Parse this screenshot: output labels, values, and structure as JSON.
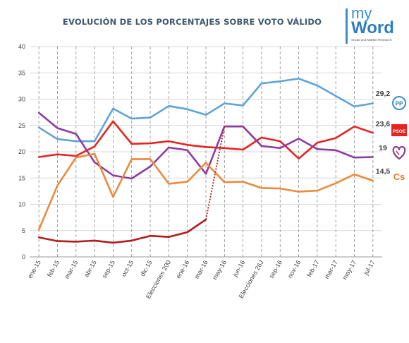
{
  "title": "EVOLUCIÓN DE LOS PORCENTAJES SOBRE VOTO VÁLIDO",
  "logo": {
    "line1": "my",
    "line2": "Word",
    "tagline": "Social and Market Research"
  },
  "party_logos": {
    "pp": "PP",
    "psoe": "PSOE",
    "cs": "Cs",
    "podemos": "heart-icon"
  },
  "chart_data": {
    "type": "line",
    "ylim": [
      0,
      40
    ],
    "yticks": [
      0,
      5,
      10,
      15,
      20,
      25,
      30,
      35,
      40
    ],
    "grid": true,
    "categories": [
      "ene-15",
      "feb-15",
      "mar-15",
      "abr-15",
      "sep-15",
      "oct-15",
      "dic-15",
      "Elecciones 200",
      "ene-16",
      "mar-16",
      "may-16",
      "jun-16",
      "Elecciones 26J",
      "sep-16",
      "nov-16",
      "feb-17",
      "mar-17",
      "may-17",
      "jul-17"
    ],
    "series": [
      {
        "key": "pp",
        "color": "#5fa3d9",
        "end_label": "29,2",
        "values": [
          24.6,
          22.4,
          22.0,
          22.0,
          28.2,
          26.3,
          26.5,
          28.7,
          28.1,
          27.0,
          29.2,
          28.8,
          33.0,
          33.4,
          33.9,
          32.6,
          30.6,
          28.6,
          29.2
        ]
      },
      {
        "key": "psoe",
        "color": "#e52421",
        "end_label": "23,6",
        "values": [
          19.0,
          19.5,
          19.2,
          21.0,
          25.8,
          21.5,
          21.6,
          22.0,
          21.3,
          20.9,
          20.7,
          20.4,
          22.7,
          22.0,
          18.7,
          21.7,
          22.6,
          24.8,
          23.6
        ]
      },
      {
        "key": "podemos",
        "color": "#8d3ba0",
        "end_label": "19",
        "values": [
          27.4,
          24.5,
          23.4,
          18.0,
          15.5,
          14.9,
          17.2,
          20.8,
          20.3,
          15.8,
          24.8,
          24.8,
          21.1,
          20.7,
          22.5,
          20.5,
          20.3,
          18.9,
          19.0
        ]
      },
      {
        "key": "cs",
        "color": "#ea8a3c",
        "end_label": "14,5",
        "values": [
          5.2,
          13.6,
          18.9,
          19.6,
          11.4,
          18.6,
          18.6,
          13.9,
          14.3,
          17.9,
          14.2,
          14.3,
          13.1,
          13.0,
          12.4,
          12.6,
          14.0,
          15.7,
          14.5
        ]
      },
      {
        "key": "other",
        "color": "#b01c1c",
        "values": [
          3.7,
          3.0,
          2.9,
          3.1,
          2.7,
          3.1,
          4.0,
          3.8,
          4.7,
          7.1,
          null,
          null,
          null,
          null,
          null,
          null,
          null,
          null,
          null
        ]
      }
    ],
    "connector": {
      "color": "#b01c1c",
      "from": [
        9,
        7.1
      ],
      "to": [
        10,
        24.8
      ]
    }
  }
}
